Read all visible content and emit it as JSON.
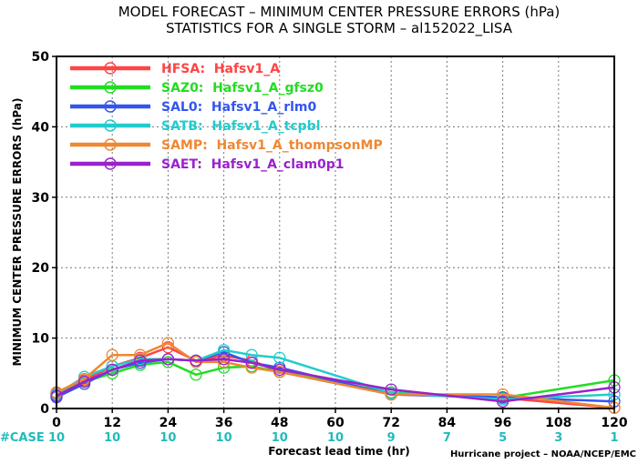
{
  "chart_data": {
    "type": "line",
    "title": "MODEL FORECAST – MINIMUM CENTER PRESSURE ERRORS (hPa)",
    "subtitle": "STATISTICS FOR A SINGLE STORM – al152022_LISA",
    "xlabel": "Forecast lead time (hr)",
    "ylabel": "MINIMUM CENTER PRESSURE ERRORS (hPa)",
    "xlim": [
      0,
      120
    ],
    "ylim": [
      0,
      50
    ],
    "x_ticks": [
      0,
      12,
      24,
      36,
      48,
      60,
      72,
      84,
      96,
      108,
      120
    ],
    "y_ticks": [
      0,
      10,
      20,
      30,
      40,
      50
    ],
    "x_tick_labels": [
      "0",
      "12",
      "24",
      "36",
      "48",
      "60",
      "72",
      "84",
      "96",
      "108",
      "120"
    ],
    "y_tick_labels": [
      "0",
      "10",
      "20",
      "30",
      "40",
      "50"
    ],
    "grid": true,
    "legend_position": "top-left",
    "case_label": "#CASE",
    "case_counts": [
      "10",
      "10",
      "10",
      "10",
      "10",
      "10",
      "9",
      "7",
      "5",
      "3",
      "1"
    ],
    "case_color": "#22bbbb",
    "credit": "Hurricane project – NOAA/NCEP/EMC",
    "series": [
      {
        "name": "HFSA:  Hafsv1_A",
        "color": "#ff4444",
        "x": [
          0,
          6,
          12,
          18,
          24,
          30,
          36,
          42,
          48,
          72,
          96,
          120
        ],
        "y": [
          2.2,
          4.0,
          6.0,
          7.2,
          8.7,
          6.8,
          7.5,
          6.8,
          5.2,
          2.0,
          1.5,
          0.1
        ]
      },
      {
        "name": "SAZ0:  Hafsv1_A_gfsz0",
        "color": "#22dd22",
        "x": [
          0,
          6,
          12,
          18,
          24,
          30,
          36,
          42,
          48,
          72,
          96,
          120
        ],
        "y": [
          2.0,
          3.8,
          5.0,
          6.2,
          6.6,
          4.8,
          5.8,
          6.0,
          5.2,
          2.3,
          1.5,
          4.0
        ]
      },
      {
        "name": "SAL0:  Hafsv1_A_rlm0",
        "color": "#3355ee",
        "x": [
          0,
          6,
          12,
          18,
          24,
          30,
          36,
          42,
          48,
          72,
          96,
          120
        ],
        "y": [
          1.6,
          3.5,
          5.5,
          6.5,
          7.0,
          6.8,
          8.0,
          6.5,
          5.8,
          2.0,
          1.6,
          1.0
        ]
      },
      {
        "name": "SATB:  Hafsv1_A_tcpbl",
        "color": "#22cccc",
        "x": [
          0,
          6,
          12,
          18,
          24,
          30,
          36,
          42,
          48,
          72,
          96,
          120
        ],
        "y": [
          2.0,
          4.5,
          6.0,
          7.0,
          7.0,
          6.8,
          8.3,
          7.6,
          7.2,
          2.2,
          1.3,
          2.0
        ]
      },
      {
        "name": "SAMP:  Hafsv1_A_thompsonMP",
        "color": "#ee8833",
        "x": [
          0,
          6,
          12,
          18,
          24,
          30,
          36,
          42,
          48,
          72,
          96,
          120
        ],
        "y": [
          2.3,
          4.2,
          7.6,
          7.6,
          9.3,
          6.6,
          6.6,
          5.8,
          5.2,
          2.0,
          2.0,
          0.1
        ]
      },
      {
        "name": "SAET:  Hafsv1_A_clam0p1",
        "color": "#9922cc",
        "x": [
          0,
          6,
          12,
          18,
          24,
          30,
          36,
          42,
          48,
          72,
          96,
          120
        ],
        "y": [
          1.8,
          3.8,
          5.5,
          6.8,
          7.0,
          6.8,
          7.0,
          6.5,
          5.5,
          2.7,
          1.0,
          3.0
        ]
      }
    ]
  }
}
